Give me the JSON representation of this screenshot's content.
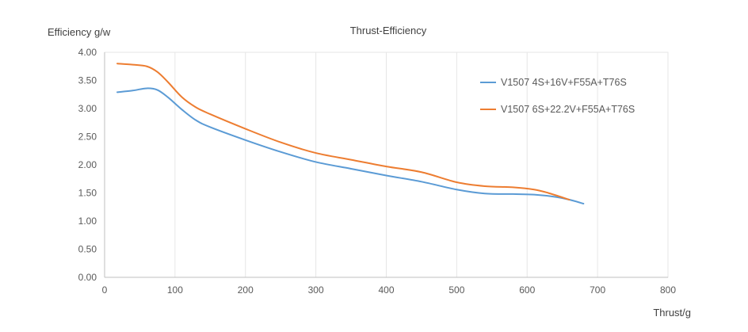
{
  "chart_data": {
    "type": "line",
    "title": "Thrust-Efficiency",
    "xlabel": "Thrust/g",
    "ylabel": "Efficiency g/w",
    "xlim": [
      0,
      800
    ],
    "ylim": [
      0,
      4
    ],
    "x_ticks": [
      0,
      100,
      200,
      300,
      400,
      500,
      600,
      700,
      800
    ],
    "y_ticks": [
      0,
      0.5,
      1.0,
      1.5,
      2.0,
      2.5,
      3.0,
      3.5,
      4.0
    ],
    "x_tick_labels": [
      "0",
      "100",
      "200",
      "300",
      "400",
      "500",
      "600",
      "700",
      "800"
    ],
    "y_tick_labels": [
      "0.00",
      "0.50",
      "1.00",
      "1.50",
      "2.00",
      "2.50",
      "3.00",
      "3.50",
      "4.00"
    ],
    "grid": "vertical",
    "legend_position": "right",
    "series": [
      {
        "name": "V1507 4S+16V+F55A+T76S",
        "color": "#5b9bd5",
        "points": [
          [
            18,
            3.29
          ],
          [
            40,
            3.32
          ],
          [
            60,
            3.36
          ],
          [
            75,
            3.33
          ],
          [
            90,
            3.2
          ],
          [
            110,
            2.98
          ],
          [
            130,
            2.79
          ],
          [
            150,
            2.67
          ],
          [
            200,
            2.44
          ],
          [
            250,
            2.23
          ],
          [
            300,
            2.05
          ],
          [
            350,
            1.93
          ],
          [
            400,
            1.81
          ],
          [
            450,
            1.7
          ],
          [
            500,
            1.56
          ],
          [
            540,
            1.49
          ],
          [
            580,
            1.48
          ],
          [
            610,
            1.47
          ],
          [
            640,
            1.43
          ],
          [
            660,
            1.38
          ],
          [
            680,
            1.31
          ]
        ]
      },
      {
        "name": "V1507 6S+22.2V+F55A+T76S",
        "color": "#ed7d31",
        "points": [
          [
            18,
            3.8
          ],
          [
            40,
            3.78
          ],
          [
            60,
            3.75
          ],
          [
            75,
            3.65
          ],
          [
            90,
            3.47
          ],
          [
            110,
            3.2
          ],
          [
            130,
            3.02
          ],
          [
            150,
            2.9
          ],
          [
            200,
            2.64
          ],
          [
            250,
            2.4
          ],
          [
            300,
            2.21
          ],
          [
            350,
            2.09
          ],
          [
            400,
            1.97
          ],
          [
            450,
            1.87
          ],
          [
            500,
            1.69
          ],
          [
            540,
            1.62
          ],
          [
            580,
            1.6
          ],
          [
            610,
            1.56
          ],
          [
            630,
            1.5
          ],
          [
            660,
            1.38
          ]
        ]
      }
    ]
  }
}
